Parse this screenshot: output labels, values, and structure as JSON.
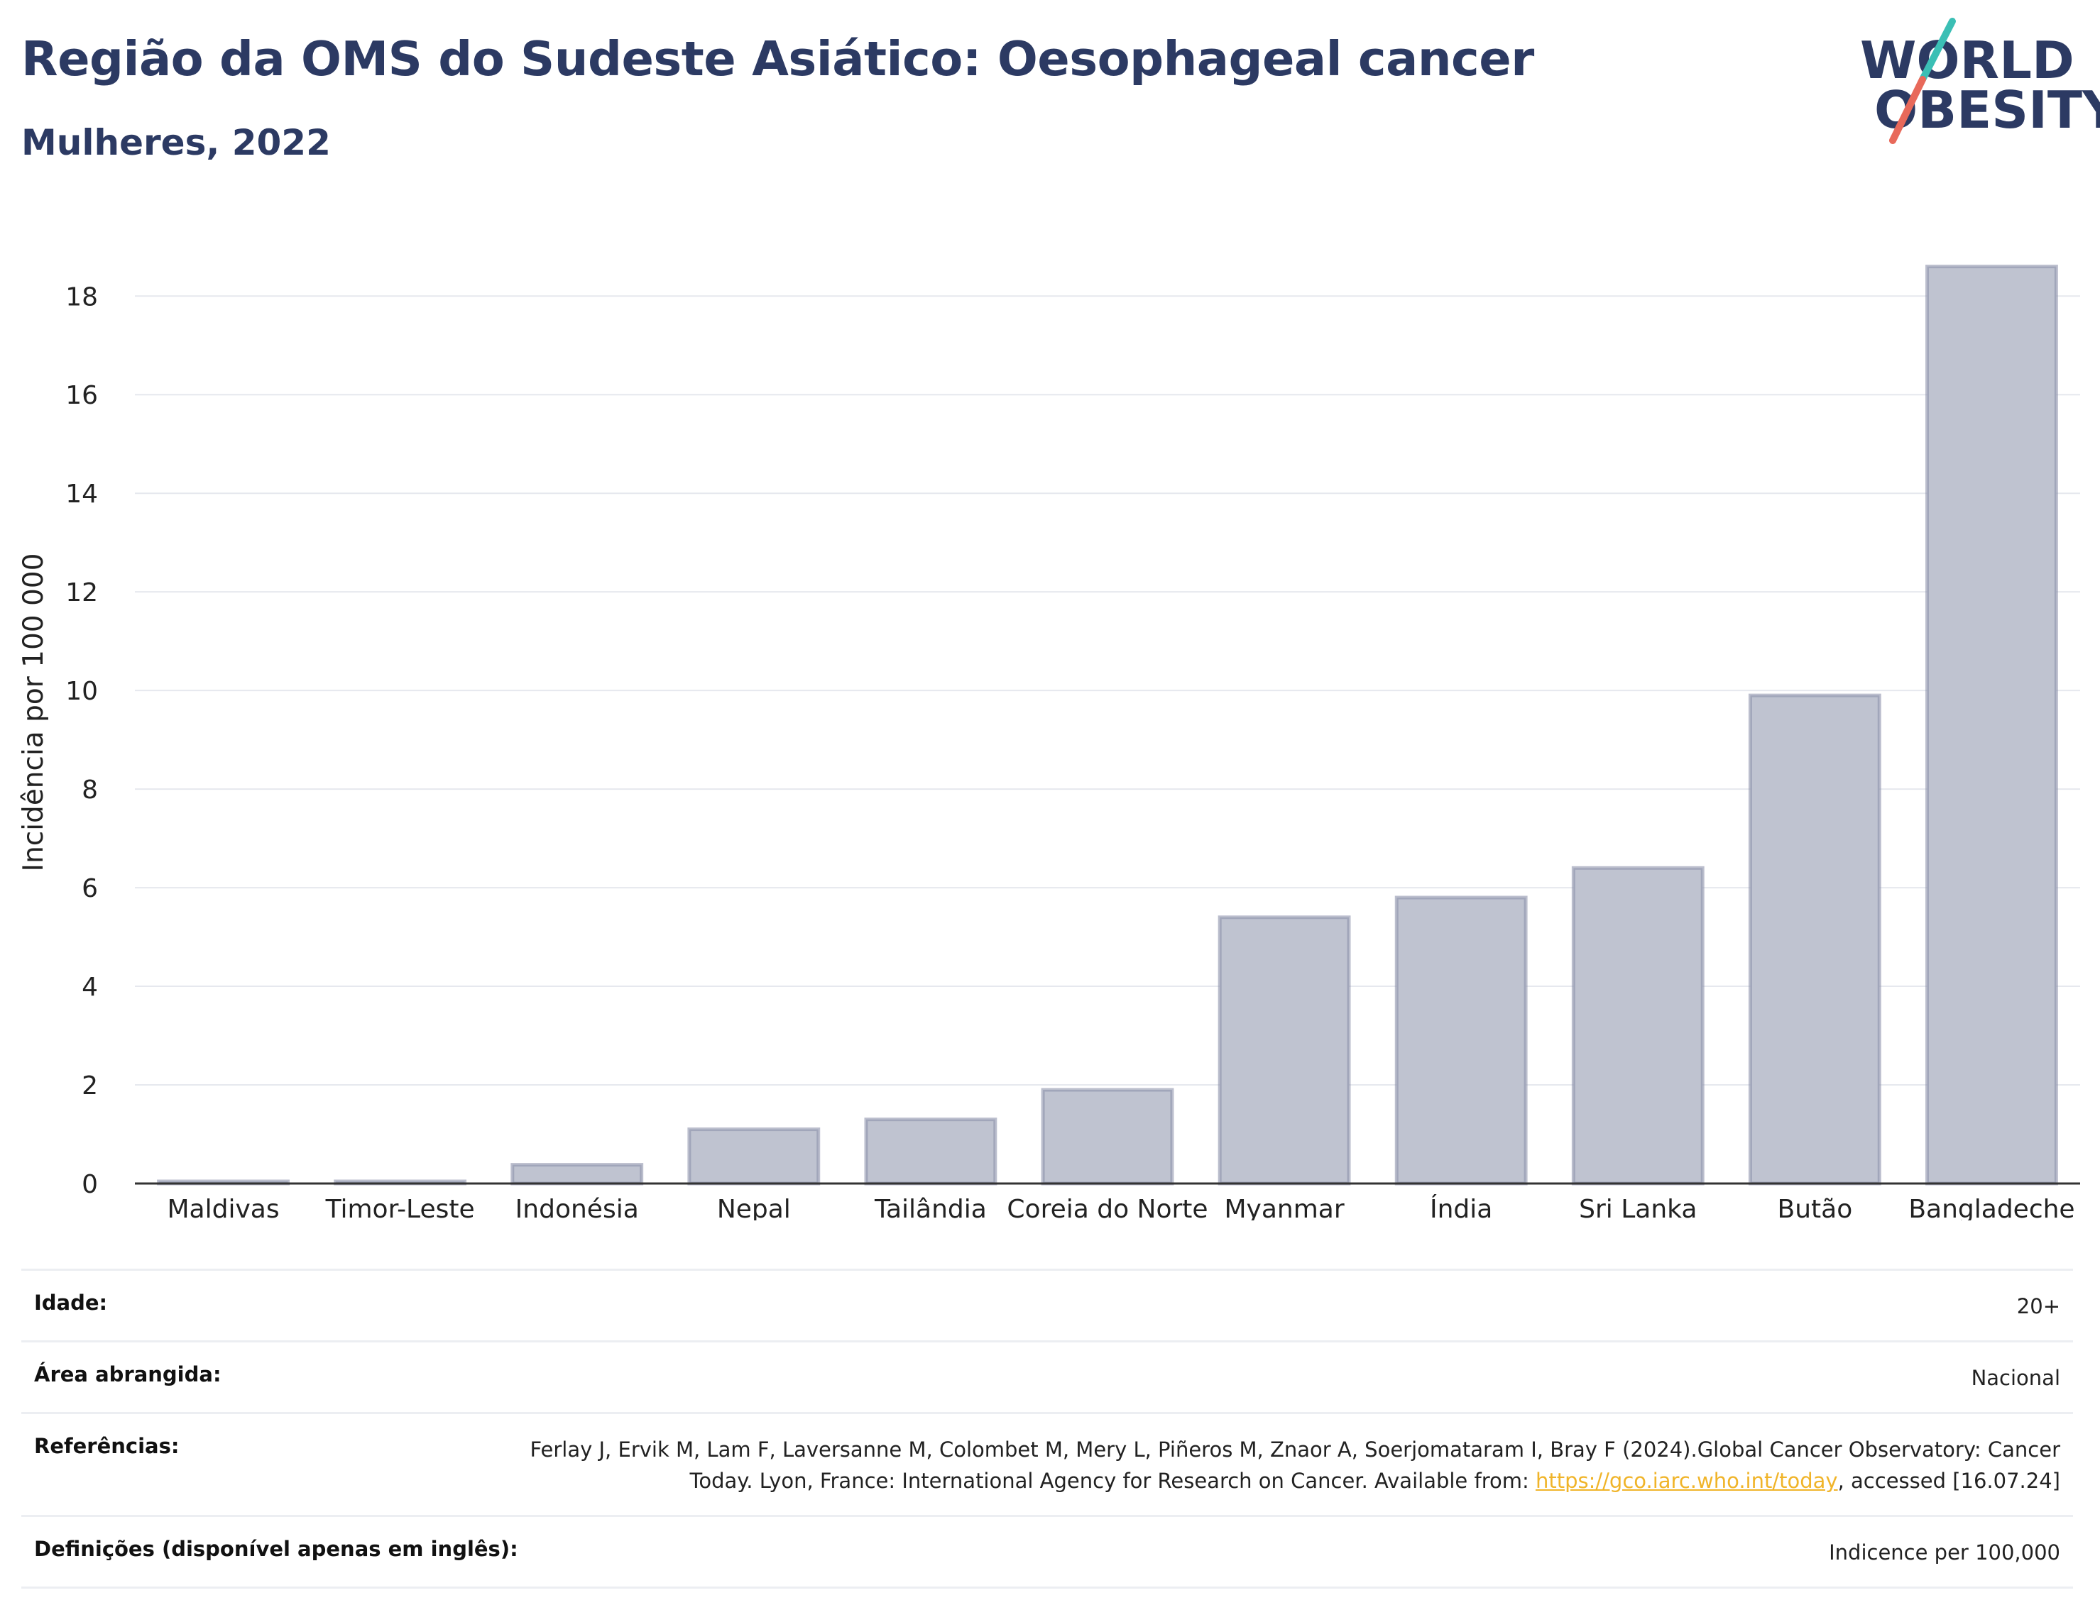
{
  "header": {
    "title": "Região da OMS do Sudeste Asiático: Oesophageal cancer",
    "subtitle": "Mulheres, 2022"
  },
  "logo": {
    "line1": "WORLD",
    "line2": "OBESITY",
    "icon": "world-obesity-logo"
  },
  "colors": {
    "title": "#2c3a63",
    "bar_fill": "#bfc3d0",
    "bar_stroke": "#8d93ab",
    "logo_teal": "#3bbfb5",
    "logo_coral": "#e8695a",
    "link": "#f0b429"
  },
  "chart_data": {
    "type": "bar",
    "categories": [
      "Maldivas",
      "Timor-Leste",
      "Indonésia",
      "Nepal",
      "Tailândia",
      "Coreia do Norte",
      "Myanmar",
      "Índia",
      "Sri Lanka",
      "Butão",
      "Bangladeche"
    ],
    "values": [
      0.02,
      0.02,
      0.38,
      1.1,
      1.3,
      1.9,
      5.4,
      5.8,
      6.4,
      9.9,
      18.6
    ],
    "ylabel": "Incidência por 100 000",
    "xlabel": "",
    "ylim": [
      0,
      19.4
    ],
    "yticks": [
      0,
      2,
      4,
      6,
      8,
      10,
      12,
      14,
      16,
      18
    ],
    "grid": true
  },
  "info": {
    "age_label": "Idade:",
    "age_value": "20+",
    "area_label": "Área abrangida:",
    "area_value": "Nacional",
    "ref_label": "Referências:",
    "ref_text_1": "Ferlay J, Ervik M, Lam F, Laversanne M, Colombet M, Mery L, Piñeros M, Znaor A, Soerjomataram I, Bray F (2024).Global Cancer Observatory: Cancer Today. Lyon, France: International Agency for Research on Cancer. Available from: ",
    "ref_link": "https://gco.iarc.who.int/today",
    "ref_text_2": ", accessed [16.07.24]",
    "def_label": "Definições (disponível apenas em inglês):",
    "def_value": "Indicence per 100,000"
  }
}
